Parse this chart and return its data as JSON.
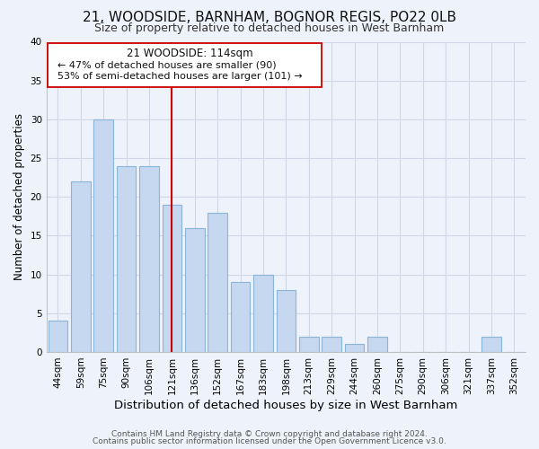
{
  "title": "21, WOODSIDE, BARNHAM, BOGNOR REGIS, PO22 0LB",
  "subtitle": "Size of property relative to detached houses in West Barnham",
  "xlabel": "Distribution of detached houses by size in West Barnham",
  "ylabel": "Number of detached properties",
  "bar_color": "#c5d8f0",
  "bar_edge_color": "#8ab4d8",
  "categories": [
    "44sqm",
    "59sqm",
    "75sqm",
    "90sqm",
    "106sqm",
    "121sqm",
    "136sqm",
    "152sqm",
    "167sqm",
    "183sqm",
    "198sqm",
    "213sqm",
    "229sqm",
    "244sqm",
    "260sqm",
    "275sqm",
    "290sqm",
    "306sqm",
    "321sqm",
    "337sqm",
    "352sqm"
  ],
  "values": [
    4,
    22,
    30,
    24,
    24,
    19,
    16,
    18,
    9,
    10,
    8,
    2,
    2,
    1,
    2,
    0,
    0,
    0,
    0,
    2,
    0
  ],
  "ylim": [
    0,
    40
  ],
  "yticks": [
    0,
    5,
    10,
    15,
    20,
    25,
    30,
    35,
    40
  ],
  "vline_index": 5,
  "vline_color": "#cc0000",
  "annotation_title": "21 WOODSIDE: 114sqm",
  "annotation_line1": "← 47% of detached houses are smaller (90)",
  "annotation_line2": "53% of semi-detached houses are larger (101) →",
  "footer1": "Contains HM Land Registry data © Crown copyright and database right 2024.",
  "footer2": "Contains public sector information licensed under the Open Government Licence v3.0.",
  "background_color": "#eef2fa",
  "grid_color": "#d0d8e8",
  "title_fontsize": 11,
  "subtitle_fontsize": 9,
  "xlabel_fontsize": 9.5,
  "ylabel_fontsize": 8.5,
  "tick_fontsize": 7.5,
  "footer_fontsize": 6.5
}
